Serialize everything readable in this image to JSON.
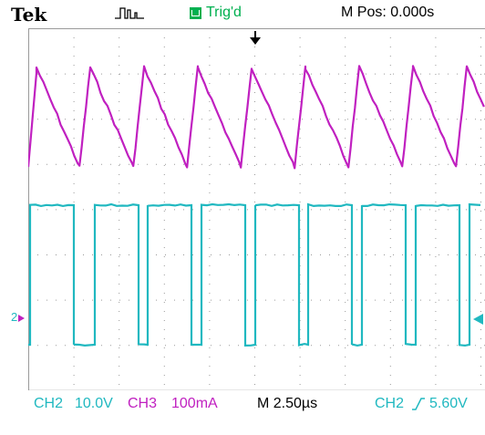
{
  "header": {
    "brand": "Tek",
    "trigger_status": "Trig'd",
    "m_pos": "M Pos: 0.000s"
  },
  "footer": {
    "ch2_label": "CH2",
    "ch2_scale": "10.0V",
    "ch3_label": "CH3",
    "ch3_scale": "100mA",
    "timebase": "M 2.50µs",
    "trigger_source": "CH2",
    "trigger_level": "5.60V"
  },
  "markers": {
    "ch2_ground": "2"
  },
  "colors": {
    "ch2": "#20b8c0",
    "ch3": "#c020c0",
    "trigger": "#00b050",
    "grid": "#9a9a9a"
  },
  "icons": {
    "acquisition": "pulse-acquire-icon",
    "trigger_box": "trigger-ready-icon",
    "trigger_position": "trigger-position-arrow-icon",
    "trigger_level": "trigger-level-arrow-icon",
    "trigger_slope": "rising-edge-icon"
  }
}
